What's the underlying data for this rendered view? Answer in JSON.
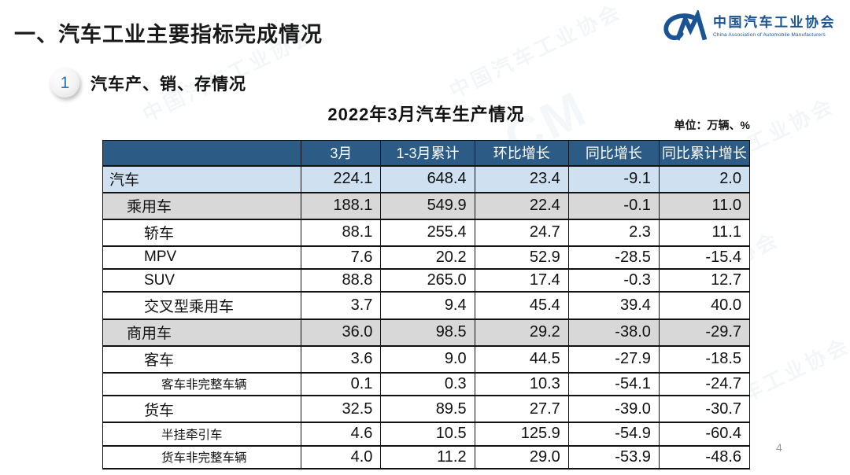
{
  "page": {
    "main_title": "一、汽车工业主要指标完成情况",
    "page_number": "4"
  },
  "logo": {
    "glyph": "CM",
    "name_zh": "中国汽车工业协会",
    "name_en": "China Association of Automobile Manufacturers",
    "color": "#1a5494"
  },
  "section": {
    "number": "1",
    "title": "汽车产、销、存情况"
  },
  "table": {
    "title": "2022年3月汽车生产情况",
    "unit_label": "单位：万辆、%",
    "columns": [
      "",
      "3月",
      "1-3月累计",
      "环比增长",
      "同比增长",
      "同比累计增长"
    ],
    "rows": [
      {
        "label": "汽车",
        "indent": 0,
        "bg": "blue",
        "small": false,
        "values": [
          "224.1",
          "648.4",
          "23.4",
          "-9.1",
          "2.0"
        ]
      },
      {
        "label": "乘用车",
        "indent": 1,
        "bg": "gray",
        "small": false,
        "values": [
          "188.1",
          "549.9",
          "22.4",
          "-0.1",
          "11.0"
        ]
      },
      {
        "label": "轿车",
        "indent": 2,
        "bg": "white",
        "small": false,
        "values": [
          "88.1",
          "255.4",
          "24.7",
          "2.3",
          "11.1"
        ]
      },
      {
        "label": "MPV",
        "indent": 2,
        "bg": "white",
        "small": false,
        "values": [
          "7.6",
          "20.2",
          "52.9",
          "-28.5",
          "-15.4"
        ]
      },
      {
        "label": "SUV",
        "indent": 2,
        "bg": "white",
        "small": false,
        "values": [
          "88.8",
          "265.0",
          "17.4",
          "-0.3",
          "12.7"
        ]
      },
      {
        "label": "交叉型乘用车",
        "indent": 2,
        "bg": "white",
        "small": false,
        "values": [
          "3.7",
          "9.4",
          "45.4",
          "39.4",
          "40.0"
        ]
      },
      {
        "label": "商用车",
        "indent": 1,
        "bg": "gray",
        "small": false,
        "values": [
          "36.0",
          "98.5",
          "29.2",
          "-38.0",
          "-29.7"
        ]
      },
      {
        "label": "客车",
        "indent": 2,
        "bg": "white",
        "small": false,
        "values": [
          "3.6",
          "9.0",
          "44.5",
          "-27.9",
          "-18.5"
        ]
      },
      {
        "label": "客车非完整车辆",
        "indent": 3,
        "bg": "white",
        "small": true,
        "values": [
          "0.1",
          "0.3",
          "10.3",
          "-54.1",
          "-24.7"
        ]
      },
      {
        "label": "货车",
        "indent": 2,
        "bg": "white",
        "small": false,
        "values": [
          "32.5",
          "89.5",
          "27.7",
          "-39.0",
          "-30.7"
        ]
      },
      {
        "label": "半挂牵引车",
        "indent": 3,
        "bg": "white",
        "small": true,
        "values": [
          "4.6",
          "10.5",
          "125.9",
          "-54.9",
          "-60.4"
        ]
      },
      {
        "label": "货车非完整车辆",
        "indent": 3,
        "bg": "white",
        "small": true,
        "values": [
          "4.0",
          "11.2",
          "29.0",
          "-53.9",
          "-48.6"
        ]
      }
    ],
    "colors": {
      "header_bg": "#2c5b85",
      "header_text": "#ffffff",
      "row_blue": "#cfe1f0",
      "row_gray": "#d8d8d8"
    }
  },
  "watermark_text": "中国汽车工业协会"
}
